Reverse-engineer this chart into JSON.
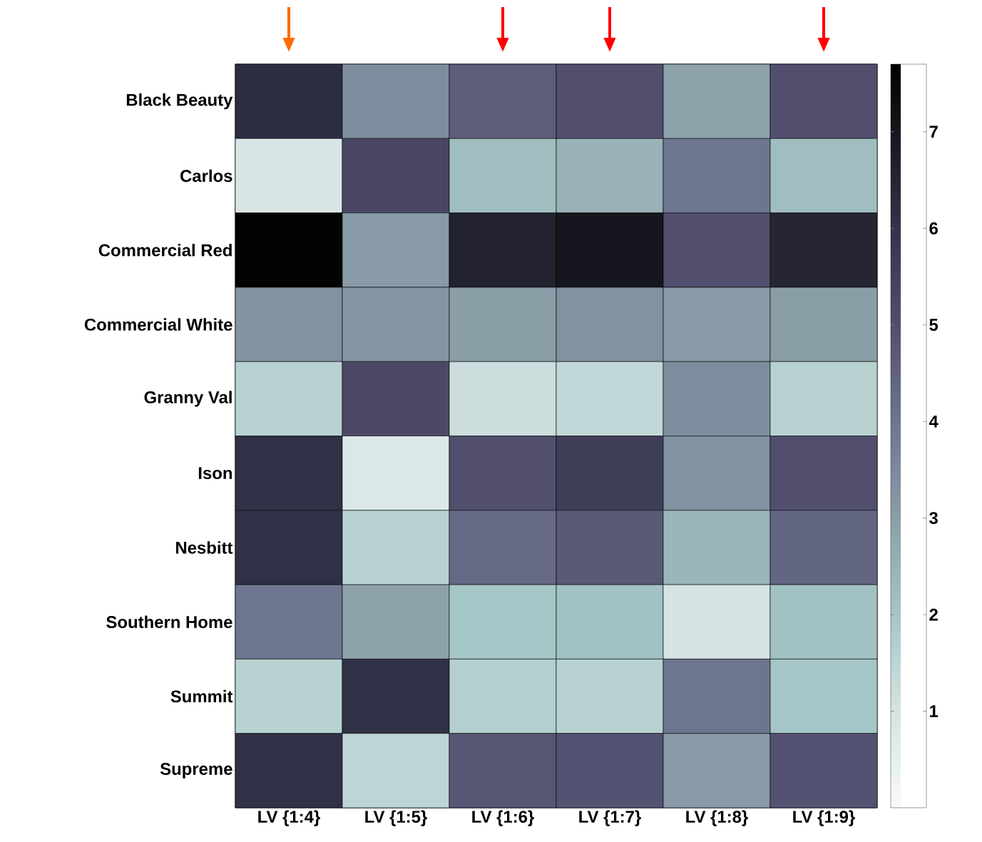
{
  "chart_data": {
    "type": "heatmap",
    "categories": [
      "LV {1:4}",
      "LV {1:5}",
      "LV {1:6}",
      "LV {1:7}",
      "LV {1:8}",
      "LV {1:9}"
    ],
    "y_categories": [
      "Black Beauty",
      "Carlos",
      "Commercial Red",
      "Commercial White",
      "Granny Val",
      "Ison",
      "Nesbitt",
      "Southern Home",
      "Summit",
      "Supreme"
    ],
    "cells": [
      [
        6.2,
        3.4,
        4.6,
        5.0,
        2.9,
        5.0
      ],
      [
        0.9,
        5.3,
        2.2,
        2.5,
        4.0,
        2.2
      ],
      [
        7.6,
        3.1,
        6.6,
        7.0,
        5.0,
        6.5
      ],
      [
        3.3,
        3.2,
        3.0,
        3.3,
        3.1,
        3.0
      ],
      [
        1.6,
        5.2,
        1.2,
        1.4,
        3.4,
        1.6
      ],
      [
        6.1,
        0.8,
        5.0,
        5.6,
        3.3,
        5.0
      ],
      [
        6.1,
        1.6,
        4.3,
        4.7,
        2.4,
        4.4
      ],
      [
        4.0,
        2.9,
        2.0,
        2.1,
        1.0,
        2.1
      ],
      [
        1.6,
        6.1,
        1.7,
        1.6,
        4.0,
        2.0
      ],
      [
        6.1,
        1.5,
        4.8,
        4.9,
        3.1,
        4.9
      ]
    ],
    "clim": [
      0,
      7.7
    ],
    "cticks": [
      1,
      2,
      3,
      4,
      5,
      6,
      7
    ]
  }
}
